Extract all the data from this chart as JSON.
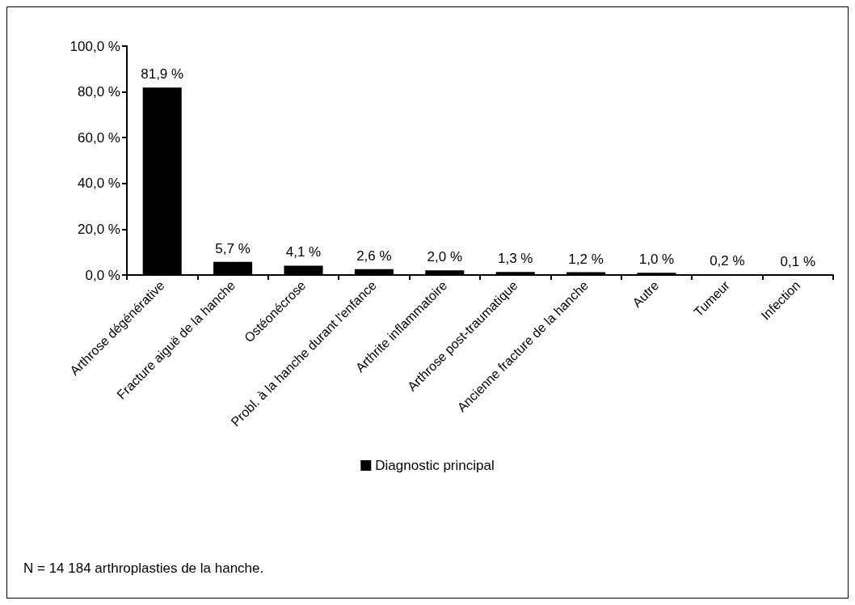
{
  "chart_data": {
    "type": "bar",
    "categories": [
      "Arthrose dégénérative",
      "Fracture aiguë de la hanche",
      "Ostéonécrose",
      "Probl. à la hanche durant l'enfance",
      "Arthrite inflammatoire",
      "Arthrose post-traumatique",
      "Ancienne fracture de la hanche",
      "Autre",
      "Tumeur",
      "Infection"
    ],
    "series": [
      {
        "name": "Diagnostic principal",
        "color": "#000000",
        "values": [
          81.9,
          5.7,
          4.1,
          2.6,
          2.0,
          1.3,
          1.2,
          1.0,
          0.2,
          0.1
        ],
        "value_labels": [
          "81,9 %",
          "5,7 %",
          "4,1 %",
          "2,6 %",
          "2,0 %",
          "1,3 %",
          "1,2 %",
          "1,0 %",
          "0,2 %",
          "0,1 %"
        ]
      }
    ],
    "ylim": [
      0,
      100
    ],
    "yticks": [
      {
        "value": 0,
        "label": "0,0 %"
      },
      {
        "value": 20,
        "label": "20,0 %"
      },
      {
        "value": 40,
        "label": "40,0 %"
      },
      {
        "value": 60,
        "label": "60,0 %"
      },
      {
        "value": 80,
        "label": "80,0 %"
      },
      {
        "value": 100,
        "label": "100,0 %"
      }
    ],
    "grid": false,
    "legend": "bottom",
    "annotations": [
      "N = 14 184 arthroplasties de la hanche."
    ]
  }
}
